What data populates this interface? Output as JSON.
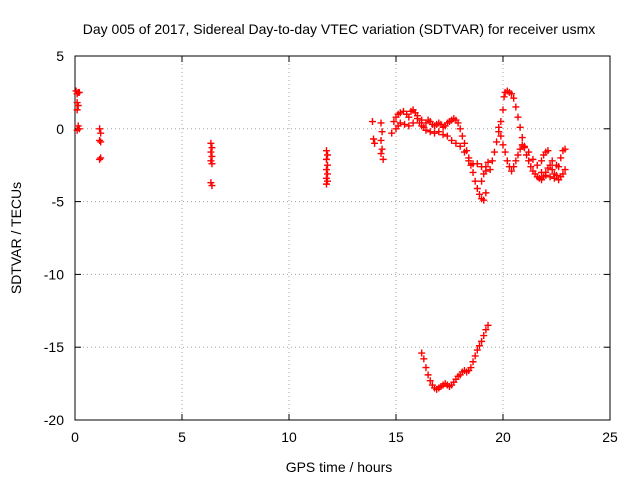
{
  "chart_data": {
    "type": "scatter",
    "title": "Day 005 of 2017, Sidereal Day-to-day VTEC variation (SDTVAR) for receiver usmx",
    "xlabel": "GPS time / hours",
    "ylabel": "SDTVAR / TECUs",
    "xlim": [
      0,
      25
    ],
    "ylim": [
      -20,
      5
    ],
    "xticks": [
      0,
      5,
      10,
      15,
      20,
      25
    ],
    "yticks": [
      -20,
      -15,
      -10,
      -5,
      0,
      5
    ],
    "grid": true,
    "marker": "+",
    "color": "#ff0000",
    "series": [
      {
        "name": "SDTVAR",
        "points": [
          [
            0.05,
            2.6
          ],
          [
            0.1,
            2.4
          ],
          [
            0.15,
            2.5
          ],
          [
            0.2,
            2.5
          ],
          [
            0.1,
            1.8
          ],
          [
            0.15,
            1.6
          ],
          [
            0.1,
            1.3
          ],
          [
            0.15,
            0.2
          ],
          [
            0.1,
            -0.1
          ],
          [
            0.2,
            0.0
          ],
          [
            1.15,
            0.0
          ],
          [
            1.2,
            -0.3
          ],
          [
            1.15,
            -0.8
          ],
          [
            1.2,
            -0.9
          ],
          [
            1.15,
            -2.1
          ],
          [
            1.2,
            -2.0
          ],
          [
            6.35,
            -1.0
          ],
          [
            6.4,
            -1.3
          ],
          [
            6.35,
            -1.6
          ],
          [
            6.4,
            -1.9
          ],
          [
            6.35,
            -2.2
          ],
          [
            6.4,
            -2.4
          ],
          [
            6.35,
            -3.7
          ],
          [
            6.4,
            -3.9
          ],
          [
            11.75,
            -1.5
          ],
          [
            11.8,
            -1.8
          ],
          [
            11.75,
            -2.1
          ],
          [
            11.8,
            -2.5
          ],
          [
            11.75,
            -2.8
          ],
          [
            11.8,
            -3.1
          ],
          [
            11.75,
            -3.4
          ],
          [
            11.8,
            -3.6
          ],
          [
            11.75,
            -3.8
          ],
          [
            13.9,
            0.5
          ],
          [
            13.95,
            -0.7
          ],
          [
            14.0,
            -1.0
          ],
          [
            14.3,
            0.4
          ],
          [
            14.35,
            -0.2
          ],
          [
            14.3,
            -0.8
          ],
          [
            14.35,
            -1.4
          ],
          [
            14.3,
            -1.7
          ],
          [
            14.4,
            -2.1
          ],
          [
            14.8,
            -0.3
          ],
          [
            14.9,
            0.5
          ],
          [
            15.0,
            0.8
          ],
          [
            15.1,
            1.0
          ],
          [
            15.2,
            1.1
          ],
          [
            15.35,
            1.2
          ],
          [
            15.5,
            1.0
          ],
          [
            15.6,
            0.8
          ],
          [
            15.7,
            1.2
          ],
          [
            15.8,
            1.3
          ],
          [
            15.9,
            1.1
          ],
          [
            16.0,
            0.7
          ],
          [
            16.1,
            0.4
          ],
          [
            16.2,
            0.2
          ],
          [
            16.3,
            0.1
          ],
          [
            16.4,
            0.4
          ],
          [
            16.5,
            0.6
          ],
          [
            16.6,
            0.5
          ],
          [
            16.7,
            0.3
          ],
          [
            16.8,
            0.2
          ],
          [
            16.9,
            0.3
          ],
          [
            17.0,
            0.4
          ],
          [
            17.1,
            0.3
          ],
          [
            17.2,
            0.1
          ],
          [
            17.3,
            0.2
          ],
          [
            17.4,
            0.4
          ],
          [
            17.5,
            0.5
          ],
          [
            17.6,
            0.6
          ],
          [
            17.7,
            0.7
          ],
          [
            17.8,
            0.6
          ],
          [
            17.9,
            0.4
          ],
          [
            18.0,
            0.0
          ],
          [
            18.1,
            -0.5
          ],
          [
            18.2,
            -1.0
          ],
          [
            18.3,
            -1.5
          ],
          [
            18.4,
            -2.0
          ],
          [
            18.5,
            -2.5
          ],
          [
            18.6,
            -3.0
          ],
          [
            18.7,
            -3.6
          ],
          [
            18.8,
            -4.1
          ],
          [
            18.9,
            -4.5
          ],
          [
            19.0,
            -4.8
          ],
          [
            19.1,
            -4.9
          ],
          [
            19.0,
            -3.6
          ],
          [
            19.1,
            -3.1
          ],
          [
            19.2,
            -2.6
          ],
          [
            19.3,
            -2.3
          ],
          [
            19.2,
            -4.4
          ],
          [
            15.0,
            0.0
          ],
          [
            15.1,
            0.2
          ],
          [
            15.2,
            0.4
          ],
          [
            15.4,
            0.3
          ],
          [
            15.6,
            0.2
          ],
          [
            15.8,
            0.4
          ],
          [
            16.0,
            0.9
          ],
          [
            16.2,
            0.6
          ],
          [
            16.4,
            -0.1
          ],
          [
            16.6,
            -0.2
          ],
          [
            16.8,
            -0.3
          ],
          [
            17.0,
            -0.2
          ],
          [
            17.2,
            -0.4
          ],
          [
            17.4,
            -0.5
          ],
          [
            17.6,
            -0.8
          ],
          [
            17.8,
            -1.0
          ],
          [
            18.0,
            -1.2
          ],
          [
            18.2,
            -1.6
          ],
          [
            18.4,
            -2.2
          ],
          [
            18.6,
            -2.4
          ],
          [
            18.8,
            -2.4
          ],
          [
            19.0,
            -2.6
          ],
          [
            19.2,
            -2.9
          ],
          [
            19.4,
            -2.8
          ],
          [
            19.5,
            -2.2
          ],
          [
            19.6,
            -1.6
          ],
          [
            19.7,
            -0.9
          ],
          [
            19.8,
            -0.2
          ],
          [
            19.9,
            0.5
          ],
          [
            20.0,
            1.3
          ],
          [
            20.05,
            2.2
          ],
          [
            20.1,
            2.5
          ],
          [
            20.2,
            2.6
          ],
          [
            20.3,
            2.5
          ],
          [
            20.4,
            2.4
          ],
          [
            20.5,
            2.1
          ],
          [
            20.6,
            1.5
          ],
          [
            20.7,
            0.8
          ],
          [
            20.8,
            0.1
          ],
          [
            20.9,
            -0.6
          ],
          [
            21.0,
            -1.2
          ],
          [
            21.1,
            -1.8
          ],
          [
            21.2,
            -2.2
          ],
          [
            21.3,
            -2.6
          ],
          [
            21.4,
            -2.9
          ],
          [
            21.5,
            -3.1
          ],
          [
            21.6,
            -3.3
          ],
          [
            21.7,
            -3.4
          ],
          [
            21.8,
            -3.5
          ],
          [
            21.9,
            -3.3
          ],
          [
            22.0,
            -3.0
          ],
          [
            22.1,
            -2.7
          ],
          [
            22.2,
            -2.5
          ],
          [
            22.3,
            -2.8
          ],
          [
            22.4,
            -3.1
          ],
          [
            22.5,
            -3.2
          ],
          [
            22.6,
            -2.6
          ],
          [
            22.7,
            -2.0
          ],
          [
            22.8,
            -1.5
          ],
          [
            22.9,
            -1.4
          ],
          [
            19.8,
            0.1
          ],
          [
            19.9,
            -0.5
          ],
          [
            20.0,
            -1.1
          ],
          [
            20.1,
            -1.6
          ],
          [
            20.2,
            -2.2
          ],
          [
            20.3,
            -2.6
          ],
          [
            20.4,
            -2.9
          ],
          [
            20.5,
            -2.6
          ],
          [
            20.6,
            -2.2
          ],
          [
            20.7,
            -1.8
          ],
          [
            20.8,
            -1.4
          ],
          [
            20.9,
            -1.1
          ],
          [
            21.0,
            -1.3
          ],
          [
            21.2,
            -1.6
          ],
          [
            21.4,
            -2.1
          ],
          [
            21.6,
            -2.5
          ],
          [
            21.8,
            -2.2
          ],
          [
            21.9,
            -1.8
          ],
          [
            22.0,
            -1.6
          ],
          [
            22.1,
            -1.5
          ],
          [
            22.3,
            -2.2
          ],
          [
            22.5,
            -2.5
          ],
          [
            22.6,
            -3.5
          ],
          [
            22.7,
            -3.3
          ],
          [
            22.8,
            -3.1
          ],
          [
            22.9,
            -2.8
          ],
          [
            22.2,
            -3.3
          ],
          [
            22.4,
            -3.4
          ],
          [
            22.0,
            -3.2
          ],
          [
            21.8,
            -3.0
          ],
          [
            16.2,
            -15.4
          ],
          [
            16.3,
            -15.8
          ],
          [
            16.4,
            -16.4
          ],
          [
            16.5,
            -16.9
          ],
          [
            16.6,
            -17.3
          ],
          [
            16.7,
            -17.6
          ],
          [
            16.8,
            -17.8
          ],
          [
            16.9,
            -17.9
          ],
          [
            17.0,
            -17.8
          ],
          [
            17.1,
            -17.7
          ],
          [
            17.2,
            -17.6
          ],
          [
            17.3,
            -17.5
          ],
          [
            17.4,
            -17.6
          ],
          [
            17.5,
            -17.7
          ],
          [
            17.6,
            -17.6
          ],
          [
            17.7,
            -17.4
          ],
          [
            17.8,
            -17.2
          ],
          [
            17.9,
            -17.0
          ],
          [
            18.0,
            -16.9
          ],
          [
            18.1,
            -16.7
          ],
          [
            18.2,
            -16.6
          ],
          [
            18.3,
            -16.7
          ],
          [
            18.4,
            -16.6
          ],
          [
            18.5,
            -16.4
          ],
          [
            18.6,
            -16.0
          ],
          [
            18.7,
            -15.6
          ],
          [
            18.8,
            -15.2
          ],
          [
            18.9,
            -14.9
          ],
          [
            19.0,
            -14.6
          ],
          [
            19.1,
            -14.2
          ],
          [
            19.2,
            -13.8
          ],
          [
            19.3,
            -13.5
          ]
        ]
      }
    ]
  }
}
